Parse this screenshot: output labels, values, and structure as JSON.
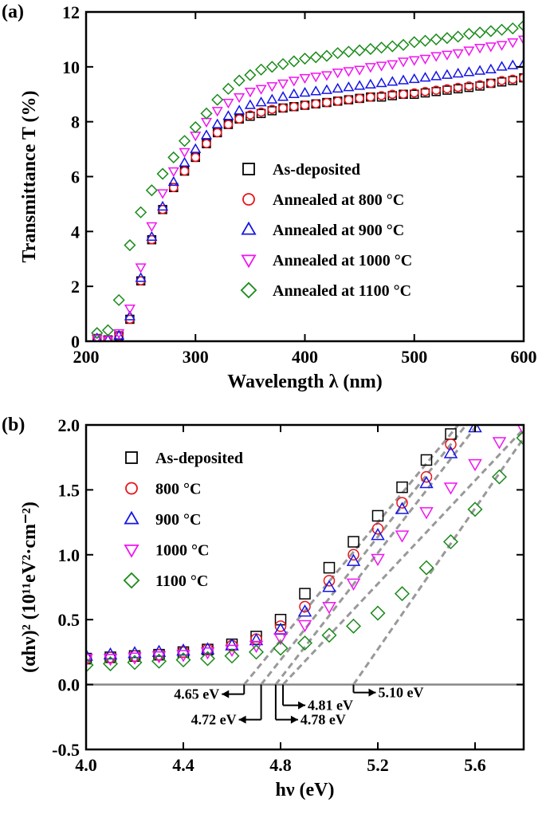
{
  "chart_data": [
    {
      "type": "scatter",
      "panel": "(a)",
      "xlabel": "Wavelength λ (nm)",
      "ylabel": "Transmittance T (%)",
      "xlim": [
        200,
        600
      ],
      "xticks": [
        200,
        300,
        400,
        500,
        600
      ],
      "ylim": [
        0,
        12
      ],
      "yticks": [
        0,
        2,
        4,
        6,
        8,
        10,
        12
      ],
      "x": [
        210,
        220,
        230,
        240,
        250,
        260,
        270,
        280,
        290,
        300,
        310,
        320,
        330,
        340,
        350,
        360,
        370,
        380,
        390,
        400,
        410,
        420,
        430,
        440,
        450,
        460,
        470,
        480,
        490,
        500,
        510,
        520,
        530,
        540,
        550,
        560,
        570,
        580,
        590,
        600
      ],
      "series": [
        {
          "name": "As-deposited",
          "color": "#000000",
          "marker": "square",
          "values": [
            0.1,
            0.05,
            0.2,
            0.8,
            2.2,
            3.7,
            4.8,
            5.6,
            6.2,
            6.7,
            7.2,
            7.6,
            7.9,
            8.1,
            8.2,
            8.3,
            8.4,
            8.5,
            8.55,
            8.6,
            8.65,
            8.7,
            8.75,
            8.8,
            8.85,
            8.9,
            8.9,
            8.95,
            9.0,
            9.0,
            9.05,
            9.1,
            9.15,
            9.2,
            9.25,
            9.3,
            9.4,
            9.45,
            9.5,
            9.6
          ]
        },
        {
          "name": "Annealed at 800 °C",
          "color": "#e8141c",
          "marker": "circle",
          "values": [
            0.1,
            0.05,
            0.2,
            0.8,
            2.2,
            3.7,
            4.8,
            5.6,
            6.2,
            6.7,
            7.2,
            7.6,
            7.9,
            8.1,
            8.25,
            8.35,
            8.45,
            8.5,
            8.55,
            8.6,
            8.65,
            8.7,
            8.75,
            8.8,
            8.85,
            8.9,
            8.95,
            9.0,
            9.0,
            9.05,
            9.1,
            9.15,
            9.2,
            9.25,
            9.3,
            9.35,
            9.4,
            9.5,
            9.55,
            9.6
          ]
        },
        {
          "name": "Annealed at 900 °C",
          "color": "#1414e6",
          "marker": "triangle-up",
          "values": [
            0.1,
            0.05,
            0.2,
            0.9,
            2.3,
            3.8,
            4.9,
            5.8,
            6.5,
            7.0,
            7.5,
            7.9,
            8.2,
            8.4,
            8.6,
            8.7,
            8.8,
            8.9,
            9.0,
            9.05,
            9.1,
            9.15,
            9.2,
            9.25,
            9.3,
            9.35,
            9.4,
            9.45,
            9.5,
            9.55,
            9.6,
            9.65,
            9.7,
            9.75,
            9.8,
            9.85,
            9.9,
            10.0,
            10.05,
            10.1
          ]
        },
        {
          "name": "Annealed at 1000 °C",
          "color": "#f014f0",
          "marker": "triangle-down",
          "values": [
            0.1,
            0.05,
            0.3,
            1.2,
            2.7,
            4.2,
            5.4,
            6.2,
            6.9,
            7.5,
            8.0,
            8.4,
            8.7,
            8.9,
            9.1,
            9.2,
            9.3,
            9.4,
            9.5,
            9.6,
            9.65,
            9.7,
            9.8,
            9.85,
            9.9,
            10.0,
            10.05,
            10.1,
            10.2,
            10.25,
            10.3,
            10.4,
            10.45,
            10.5,
            10.6,
            10.7,
            10.75,
            10.8,
            10.9,
            11.0
          ]
        },
        {
          "name": "Annealed at 1100 °C",
          "color": "#1a8a1a",
          "marker": "diamond",
          "values": [
            0.3,
            0.4,
            1.5,
            3.5,
            4.7,
            5.5,
            6.1,
            6.7,
            7.3,
            7.8,
            8.3,
            8.8,
            9.2,
            9.5,
            9.7,
            9.9,
            10.0,
            10.1,
            10.2,
            10.3,
            10.35,
            10.4,
            10.5,
            10.55,
            10.6,
            10.65,
            10.7,
            10.75,
            10.8,
            10.9,
            10.95,
            11.0,
            11.05,
            11.1,
            11.2,
            11.25,
            11.3,
            11.35,
            11.4,
            11.5
          ]
        }
      ]
    },
    {
      "type": "scatter",
      "panel": "(b)",
      "xlabel": "hν (eV)",
      "ylabel": "(αhν)² (10¹¹eV²·cm⁻²)",
      "xlim": [
        4.0,
        5.8
      ],
      "xticks": [
        {
          "value": 4.0,
          "label": "4.0"
        },
        4.4,
        4.8,
        5.2,
        5.6
      ],
      "ylim": [
        -0.5,
        2.0
      ],
      "yticks": [
        -0.5,
        {
          "value": 0.0,
          "label": "0.0"
        },
        0.5,
        {
          "value": 1.0,
          "label": "1.0"
        },
        1.5,
        {
          "value": 2.0,
          "label": "2.0"
        }
      ],
      "x": [
        4.0,
        4.1,
        4.2,
        4.3,
        4.4,
        4.5,
        4.6,
        4.7,
        4.8,
        4.9,
        5.0,
        5.1,
        5.2,
        5.3,
        5.4,
        5.5,
        5.6,
        5.7,
        5.8
      ],
      "series": [
        {
          "name": "As-deposited",
          "color": "#000000",
          "marker": "square",
          "edge": 4.65,
          "edge_label": "4.65 eV",
          "values": [
            0.2,
            0.21,
            0.22,
            0.23,
            0.25,
            0.27,
            0.31,
            0.37,
            0.5,
            0.7,
            0.9,
            1.1,
            1.3,
            1.52,
            1.73,
            1.93,
            null,
            null,
            null
          ]
        },
        {
          "name": "800 °C",
          "color": "#e8141c",
          "marker": "circle",
          "edge": 4.72,
          "edge_label": "4.72 eV",
          "values": [
            0.2,
            0.21,
            0.22,
            0.23,
            0.25,
            0.27,
            0.3,
            0.35,
            0.45,
            0.6,
            0.8,
            1.0,
            1.2,
            1.4,
            1.6,
            1.85,
            null,
            null,
            null
          ]
        },
        {
          "name": "900 °C",
          "color": "#1414e6",
          "marker": "triangle-up",
          "edge": 4.78,
          "edge_label": "4.78 eV",
          "values": [
            0.22,
            0.23,
            0.24,
            0.25,
            0.26,
            0.27,
            0.3,
            0.34,
            0.42,
            0.56,
            0.75,
            0.95,
            1.15,
            1.35,
            1.55,
            1.78,
            1.98,
            null,
            null
          ]
        },
        {
          "name": "1000 °C",
          "color": "#f014f0",
          "marker": "triangle-down",
          "edge": 4.81,
          "edge_label": "4.81 eV",
          "values": [
            0.2,
            0.2,
            0.21,
            0.22,
            0.23,
            0.25,
            0.27,
            0.3,
            0.36,
            0.46,
            0.6,
            0.78,
            0.97,
            1.15,
            1.33,
            1.52,
            1.7,
            1.87,
            1.97
          ]
        },
        {
          "name": "1100 °C",
          "color": "#1a8a1a",
          "marker": "diamond",
          "edge": 5.1,
          "edge_label": "5.10 eV",
          "values": [
            0.15,
            0.16,
            0.17,
            0.18,
            0.19,
            0.2,
            0.22,
            0.25,
            0.28,
            0.32,
            0.38,
            0.45,
            0.55,
            0.7,
            0.9,
            1.1,
            1.35,
            1.6,
            1.9
          ]
        }
      ]
    }
  ]
}
